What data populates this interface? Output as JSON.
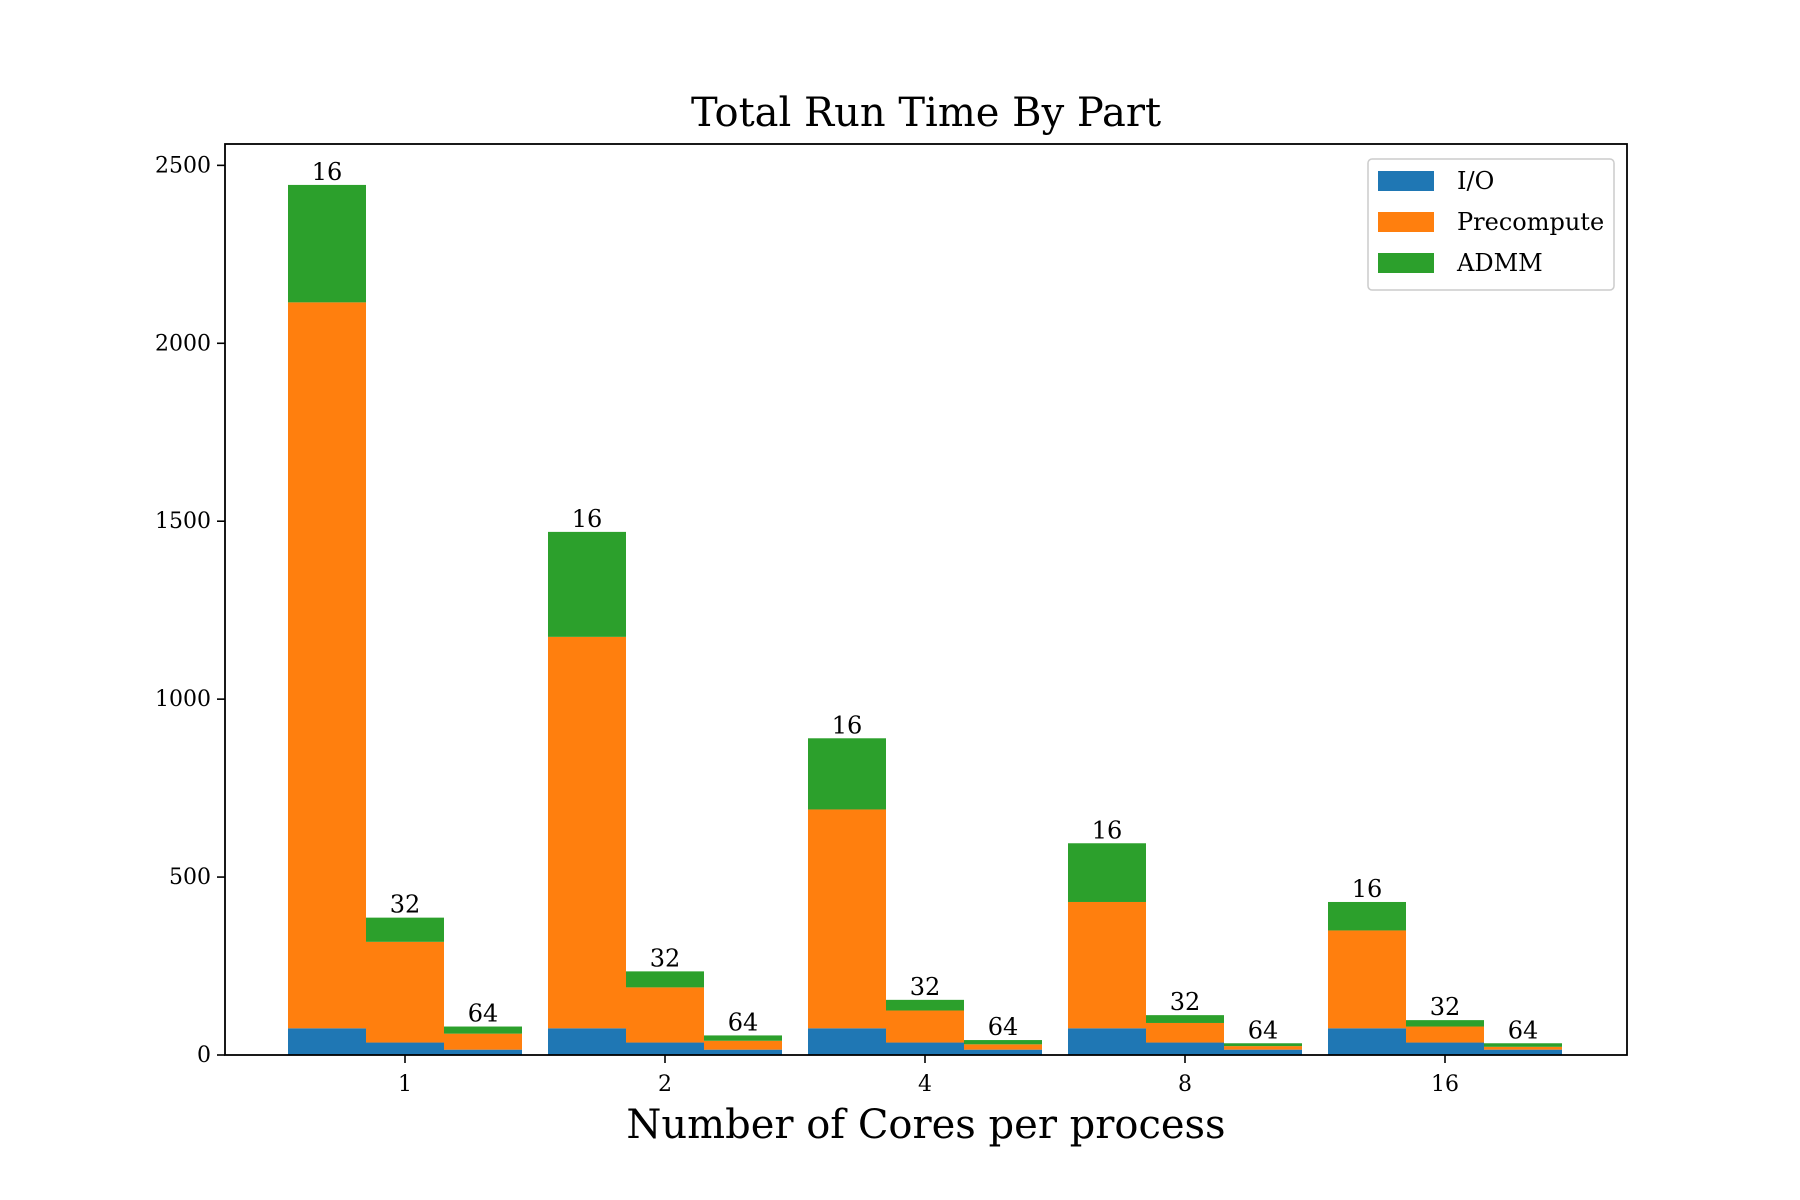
{
  "chart_data": {
    "type": "bar",
    "stacked": true,
    "title": "Total Run Time By Part",
    "xlabel": "Number of Cores per process",
    "ylabel": "",
    "ylim": [
      0,
      2560
    ],
    "yticks": [
      0,
      500,
      1000,
      1500,
      2000,
      2500
    ],
    "categories": [
      "1",
      "2",
      "4",
      "8",
      "16"
    ],
    "sub_groups": [
      "16",
      "32",
      "64"
    ],
    "series": [
      {
        "name": "I/O",
        "color": "#1f77b4",
        "values": [
          [
            75,
            35,
            15
          ],
          [
            75,
            35,
            15
          ],
          [
            75,
            35,
            15
          ],
          [
            75,
            35,
            15
          ],
          [
            75,
            35,
            15
          ]
        ]
      },
      {
        "name": "Precompute",
        "color": "#ff7f0e",
        "values": [
          [
            2040,
            283,
            45
          ],
          [
            1100,
            155,
            25
          ],
          [
            615,
            90,
            15
          ],
          [
            355,
            55,
            10
          ],
          [
            275,
            45,
            8
          ]
        ]
      },
      {
        "name": "ADMM",
        "color": "#2ca02c",
        "values": [
          [
            330,
            68,
            20
          ],
          [
            295,
            45,
            15
          ],
          [
            200,
            30,
            12
          ],
          [
            165,
            22,
            8
          ],
          [
            80,
            18,
            10
          ]
        ]
      }
    ],
    "legend_position": "top-right",
    "grid": false
  }
}
